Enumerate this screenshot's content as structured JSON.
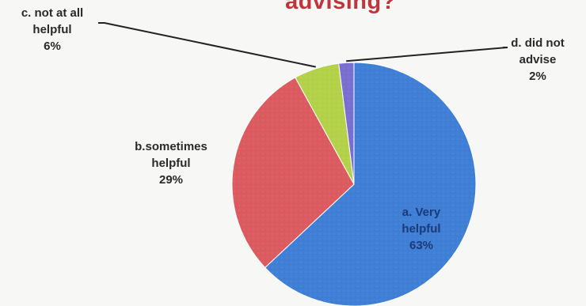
{
  "chart_data": {
    "type": "pie",
    "title": "advising?",
    "slices": [
      {
        "label_lines": [
          "a. Very",
          "helpful"
        ],
        "value": 63,
        "pct": "63%",
        "color": "#3f7fd6"
      },
      {
        "label_lines": [
          "b.sometimes",
          "helpful"
        ],
        "value": 29,
        "pct": "29%",
        "color": "#dc5b60"
      },
      {
        "label_lines": [
          "c. not at all",
          "helpful"
        ],
        "value": 6,
        "pct": "6%",
        "color": "#b3d24a"
      },
      {
        "label_lines": [
          "d. did not",
          "advise"
        ],
        "value": 2,
        "pct": "2%",
        "color": "#7a6fd0"
      }
    ]
  }
}
